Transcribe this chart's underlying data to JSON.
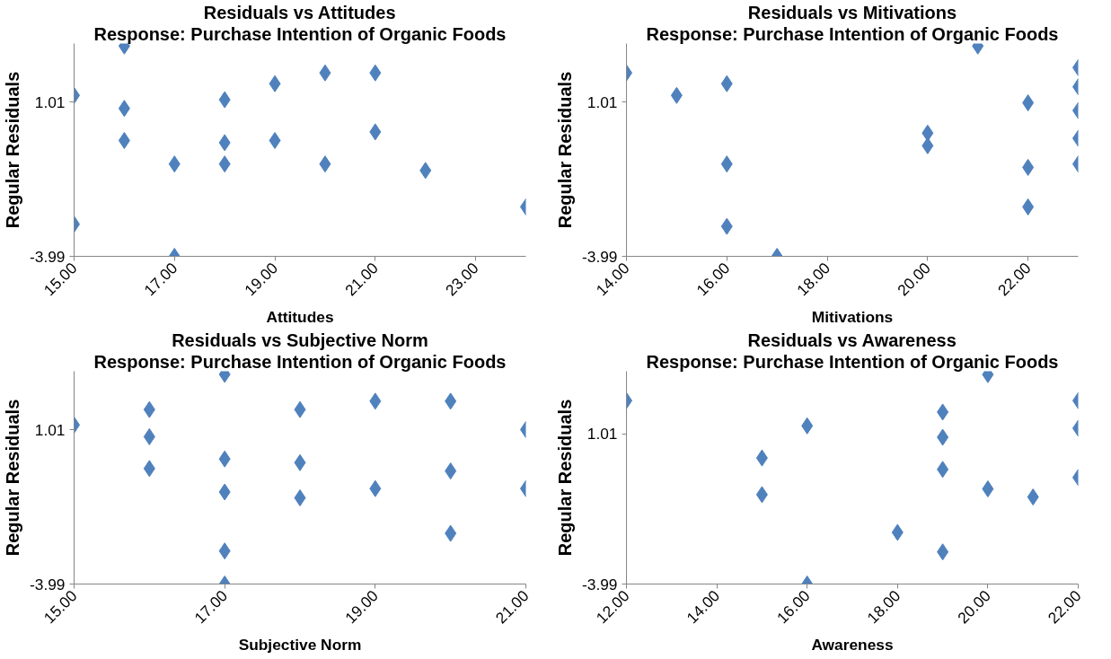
{
  "chart_data": [
    {
      "type": "scatter",
      "title": "Residuals vs Attitudes",
      "subtitle": "Response: Purchase Intention of Organic Foods",
      "xlabel": "Attitudes",
      "ylabel": "Regular Residuals",
      "marker": "diamond",
      "grid": false,
      "xlim": [
        15,
        24
      ],
      "xticks": [
        {
          "value": 15,
          "label": "15.00"
        },
        {
          "value": 17,
          "label": "17.00"
        },
        {
          "value": 19,
          "label": "19.00"
        },
        {
          "value": 21,
          "label": "21.00"
        },
        {
          "value": 23,
          "label": "23.00"
        }
      ],
      "ylim": [
        -3.99,
        2.9
      ],
      "yticks": [
        -3.99,
        1.01
      ],
      "series": [
        {
          "color": "#4f81bd",
          "x": [
            15,
            15,
            16,
            16,
            16,
            17,
            17,
            18,
            18,
            18,
            19,
            19,
            20,
            20,
            21,
            21,
            22,
            24
          ],
          "values": [
            1.22,
            -2.95,
            2.82,
            0.8,
            -0.24,
            -1.0,
            -3.99,
            1.08,
            -0.31,
            -1.0,
            1.6,
            -0.24,
            1.95,
            -1.0,
            1.95,
            0.04,
            -1.21,
            -2.39
          ]
        }
      ]
    },
    {
      "type": "scatter",
      "title": "Residuals vs Mitivations",
      "subtitle": "Response: Purchase Intention of Organic Foods",
      "xlabel": "Mitivations",
      "ylabel": "Regular Residuals",
      "marker": "diamond",
      "grid": false,
      "xlim": [
        14,
        23
      ],
      "xticks": [
        {
          "value": 14,
          "label": "14.00"
        },
        {
          "value": 16,
          "label": "16.00"
        },
        {
          "value": 18,
          "label": "18.00"
        },
        {
          "value": 20,
          "label": "20.00"
        },
        {
          "value": 22,
          "label": "22.00"
        }
      ],
      "ylim": [
        -3.99,
        2.9
      ],
      "yticks": [
        -3.99,
        1.01
      ],
      "series": [
        {
          "color": "#4f81bd",
          "x": [
            14,
            15,
            16,
            16,
            16,
            17,
            20,
            20,
            21,
            22,
            22,
            22,
            23,
            23,
            23,
            23,
            23
          ],
          "values": [
            1.95,
            1.22,
            1.6,
            -1.0,
            -3.02,
            -3.99,
            0.0,
            -0.41,
            2.82,
            0.98,
            -1.11,
            -2.39,
            2.12,
            1.5,
            0.73,
            -0.17,
            -1.0
          ]
        }
      ]
    },
    {
      "type": "scatter",
      "title": "Residuals vs Subjective Norm",
      "subtitle": "Response: Purchase Intention of Organic Foods",
      "xlabel": "Subjective Norm",
      "ylabel": "Regular Residuals",
      "marker": "diamond",
      "grid": false,
      "xlim": [
        15,
        21
      ],
      "xticks": [
        {
          "value": 15,
          "label": "15.00"
        },
        {
          "value": 17,
          "label": "17.00"
        },
        {
          "value": 19,
          "label": "19.00"
        },
        {
          "value": 21,
          "label": "21.00"
        }
      ],
      "ylim": [
        -3.99,
        2.9
      ],
      "yticks": [
        -3.99,
        1.01
      ],
      "series": [
        {
          "color": "#4f81bd",
          "x": [
            15,
            16,
            16,
            16,
            17,
            17,
            17,
            17,
            17,
            18,
            18,
            18,
            19,
            19,
            20,
            20,
            20,
            21,
            21
          ],
          "values": [
            1.16,
            1.66,
            0.78,
            -0.25,
            2.8,
            0.06,
            -1.01,
            -2.92,
            -3.99,
            1.66,
            -0.06,
            -1.2,
            1.93,
            -0.9,
            1.93,
            -0.33,
            -2.35,
            1.01,
            -0.9
          ]
        }
      ]
    },
    {
      "type": "scatter",
      "title": "Residuals vs Awareness",
      "subtitle": "Response: Purchase Intention of Organic Foods",
      "xlabel": "Awareness",
      "ylabel": "Regular Residuals",
      "marker": "diamond",
      "grid": false,
      "xlim": [
        12,
        22
      ],
      "xticks": [
        {
          "value": 12,
          "label": "12.00"
        },
        {
          "value": 14,
          "label": "14.00"
        },
        {
          "value": 16,
          "label": "16.00"
        },
        {
          "value": 18,
          "label": "18.00"
        },
        {
          "value": 20,
          "label": "20.00"
        },
        {
          "value": 22,
          "label": "22.00"
        }
      ],
      "ylim": [
        -3.99,
        3.1
      ],
      "yticks": [
        -3.99,
        1.01
      ],
      "series": [
        {
          "color": "#4f81bd",
          "x": [
            12,
            15,
            15,
            16,
            16,
            18,
            19,
            19,
            19,
            19,
            20,
            20,
            21,
            22,
            22,
            22
          ],
          "values": [
            2.12,
            0.21,
            -1.01,
            1.28,
            -3.99,
            -2.27,
            1.74,
            0.9,
            -0.17,
            -2.92,
            2.99,
            -0.82,
            -1.09,
            2.12,
            1.2,
            -0.44
          ]
        }
      ]
    }
  ]
}
